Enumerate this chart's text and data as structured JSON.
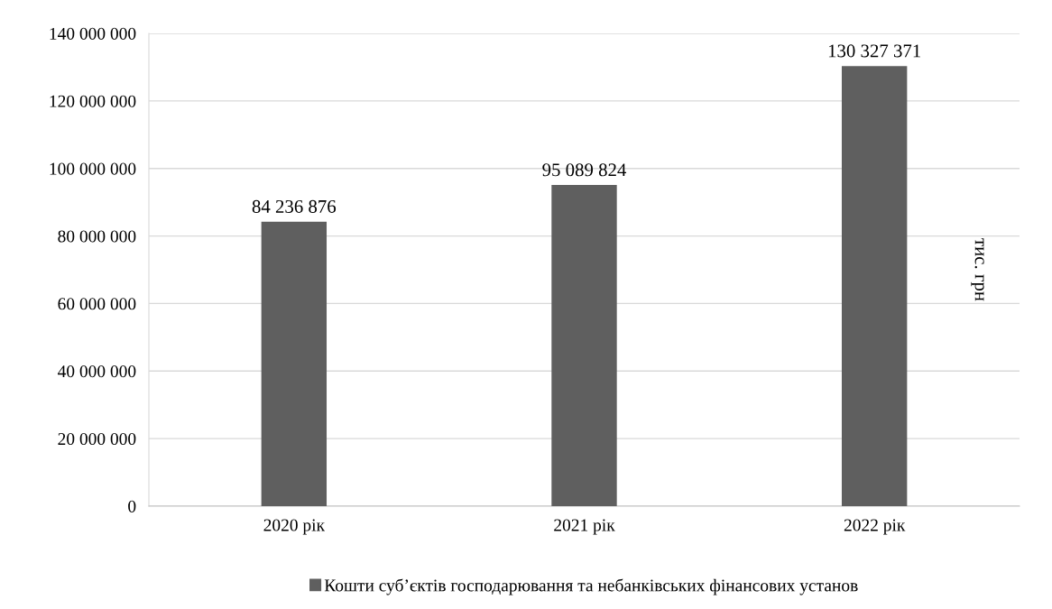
{
  "chart_data": {
    "type": "bar",
    "categories": [
      "2020 рік",
      "2021 рік",
      "2022 рік"
    ],
    "series": [
      {
        "name": "Кошти суб’єктів господарювання та небанківських фінансових установ",
        "color": "#5f5f5f",
        "values": [
          84236876,
          95089824,
          130327371
        ]
      }
    ],
    "ylabel": "тис. грн",
    "ylim": [
      0,
      140000000
    ],
    "yticks": [
      {
        "value": 0,
        "label": "0"
      },
      {
        "value": 20000000,
        "label": "20 000 000"
      },
      {
        "value": 40000000,
        "label": "40 000 000"
      },
      {
        "value": 60000000,
        "label": "60 000 000"
      },
      {
        "value": 80000000,
        "label": "80 000 000"
      },
      {
        "value": 100000000,
        "label": "100 000 000"
      },
      {
        "value": 120000000,
        "label": "120 000 000"
      },
      {
        "value": 140000000,
        "label": "140 000 000"
      }
    ],
    "value_labels": [
      "84 236 876",
      "95 089 824",
      "130 327 371"
    ],
    "grid": "y",
    "legend": "bottom"
  }
}
